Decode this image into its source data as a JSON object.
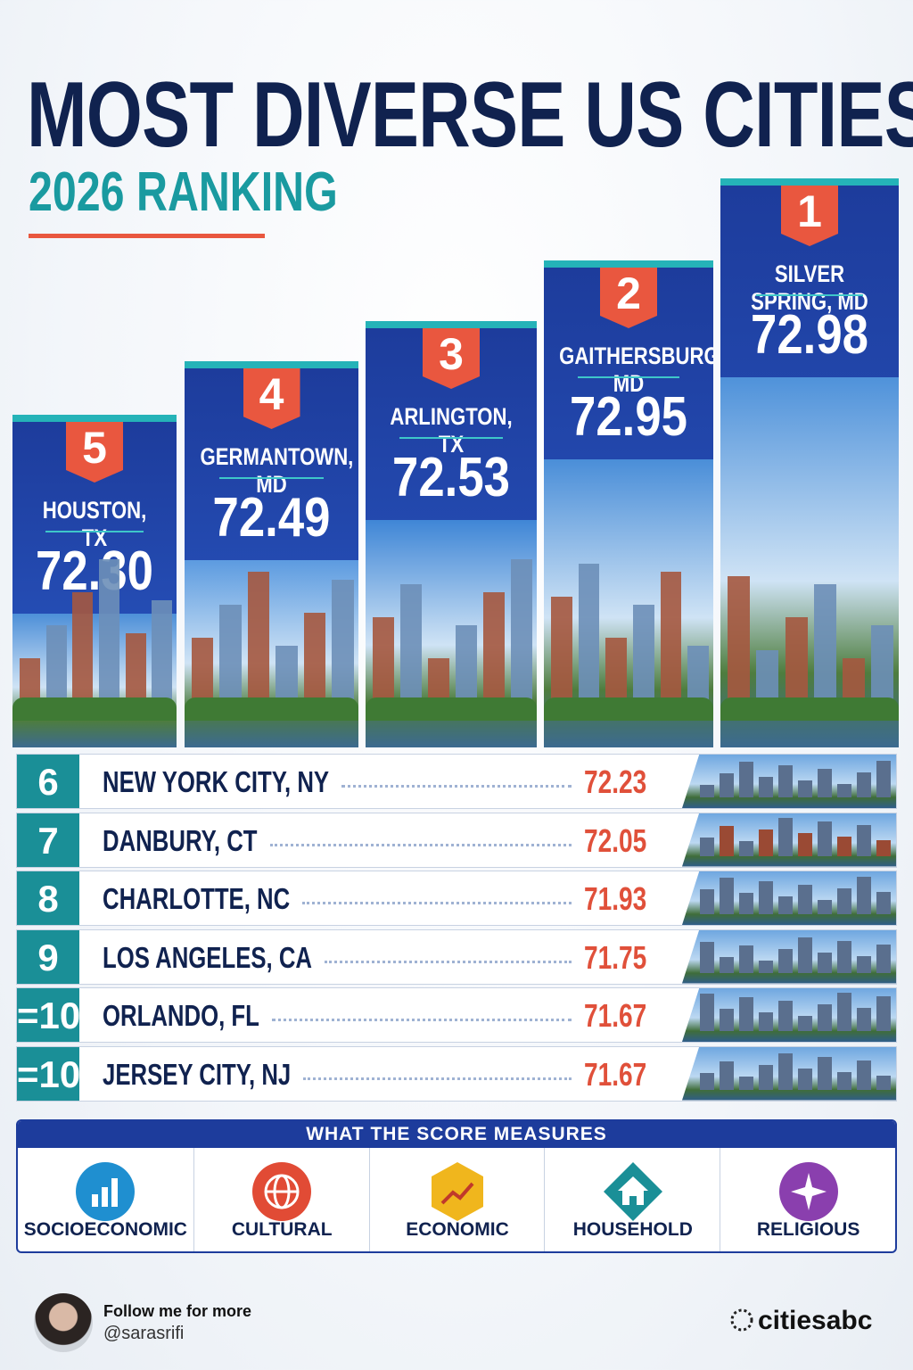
{
  "header": {
    "title": "MOST DIVERSE US CITIES",
    "subtitle": "2026 RANKING"
  },
  "podium": [
    {
      "rank": "5",
      "city": "HOUSTON, TX",
      "score": "72.30"
    },
    {
      "rank": "4",
      "city": "GERMANTOWN, MD",
      "score": "72.49"
    },
    {
      "rank": "3",
      "city": "ARLINGTON, TX",
      "score": "72.53"
    },
    {
      "rank": "2",
      "city": "GAITHERSBURG, MD",
      "score": "72.95"
    },
    {
      "rank": "1",
      "city": "SILVER SPRING, MD",
      "score": "72.98"
    }
  ],
  "list": [
    {
      "rank": "6",
      "city": "NEW YORK CITY, NY",
      "score": "72.23"
    },
    {
      "rank": "7",
      "city": "DANBURY, CT",
      "score": "72.05"
    },
    {
      "rank": "8",
      "city": "CHARLOTTE, NC",
      "score": "71.93"
    },
    {
      "rank": "9",
      "city": "LOS ANGELES, CA",
      "score": "71.75"
    },
    {
      "rank": "=10",
      "city": "ORLANDO, FL",
      "score": "71.67"
    },
    {
      "rank": "=10",
      "city": "JERSEY CITY, NJ",
      "score": "71.67"
    }
  ],
  "measures": {
    "title": "WHAT THE SCORE MEASURES",
    "items": [
      "SOCIOECONOMIC",
      "CULTURAL",
      "ECONOMIC",
      "HOUSEHOLD",
      "RELIGIOUS"
    ]
  },
  "footer": {
    "follow": "Follow me for more",
    "handle": "@sarasrifi",
    "brand": "citiesabc"
  }
}
